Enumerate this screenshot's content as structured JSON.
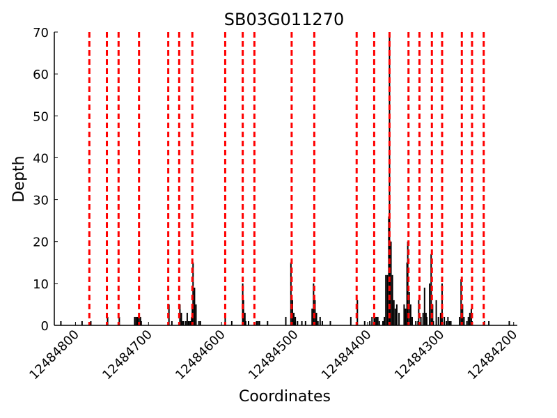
{
  "chart_data": {
    "type": "bar",
    "title": "SB03G011270",
    "xlabel": "Coordinates",
    "ylabel": "Depth",
    "xlim": [
      12484829,
      12484195
    ],
    "ylim": [
      0,
      70
    ],
    "xticks": [
      12484800,
      12484700,
      12484600,
      12484500,
      12484400,
      12484300,
      12484200
    ],
    "yticks": [
      0,
      10,
      20,
      30,
      40,
      50,
      60,
      70
    ],
    "grid": false,
    "bar_color": "#000000",
    "vline_color": "#ff0000",
    "vlines": [
      12484781,
      12484757,
      12484741,
      12484713,
      12484673,
      12484658,
      12484640,
      12484595,
      12484571,
      12484555,
      12484504,
      12484473,
      12484415,
      12484391,
      12484370,
      12484344,
      12484329,
      12484312,
      12484298,
      12484271,
      12484257,
      12484241
    ],
    "x": [
      12484820,
      12484791,
      12484779,
      12484756,
      12484740,
      12484719,
      12484717,
      12484715,
      12484713,
      12484711,
      12484710,
      12484672,
      12484668,
      12484657,
      12484655,
      12484653,
      12484652,
      12484649,
      12484647,
      12484645,
      12484643,
      12484642,
      12484641,
      12484640,
      12484639,
      12484637,
      12484635,
      12484631,
      12484629,
      12484595,
      12484586,
      12484571,
      12484570,
      12484568,
      12484567,
      12484563,
      12484552,
      12484550,
      12484548,
      12484537,
      12484512,
      12484505,
      12484503,
      12484501,
      12484499,
      12484496,
      12484490,
      12484485,
      12484476,
      12484474,
      12484472,
      12484470,
      12484468,
      12484465,
      12484462,
      12484451,
      12484423,
      12484414,
      12484404,
      12484397,
      12484394,
      12484391,
      12484390,
      12484388,
      12484386,
      12484384,
      12484379,
      12484377,
      12484375,
      12484373,
      12484371,
      12484370,
      12484368,
      12484366,
      12484364,
      12484362,
      12484360,
      12484357,
      12484350,
      12484348,
      12484346,
      12484345,
      12484343,
      12484341,
      12484339,
      12484334,
      12484331,
      12484330,
      12484327,
      12484324,
      12484322,
      12484320,
      12484319,
      12484315,
      12484313,
      12484311,
      12484310,
      12484306,
      12484303,
      12484300,
      12484298,
      12484295,
      12484292,
      12484290,
      12484288,
      12484286,
      12484274,
      12484272,
      12484270,
      12484268,
      12484264,
      12484262,
      12484260,
      12484258,
      12484257,
      12484240,
      12484234,
      12484206
    ],
    "values": [
      1,
      1,
      1,
      2,
      2,
      2,
      2,
      2,
      3,
      2,
      1,
      5,
      1,
      5,
      3,
      1,
      1,
      1,
      3,
      1,
      1,
      1,
      2,
      5,
      15,
      9,
      5,
      1,
      1,
      2,
      1,
      10,
      6,
      3,
      1,
      1,
      1,
      1,
      1,
      1,
      2,
      15,
      6,
      3,
      2,
      1,
      1,
      1,
      4,
      10,
      6,
      3,
      1,
      2,
      1,
      1,
      2,
      6,
      1,
      1,
      2,
      3,
      2,
      2,
      2,
      1,
      1,
      2,
      12,
      12,
      26,
      70,
      20,
      12,
      6,
      4,
      5,
      3,
      5,
      4,
      15,
      20,
      8,
      5,
      2,
      1,
      1,
      6,
      2,
      3,
      9,
      3,
      2,
      10,
      17,
      5,
      1,
      6,
      2,
      3,
      10,
      2,
      1,
      2,
      1,
      1,
      2,
      11,
      5,
      2,
      1,
      2,
      3,
      4,
      1,
      1,
      1,
      1
    ]
  }
}
